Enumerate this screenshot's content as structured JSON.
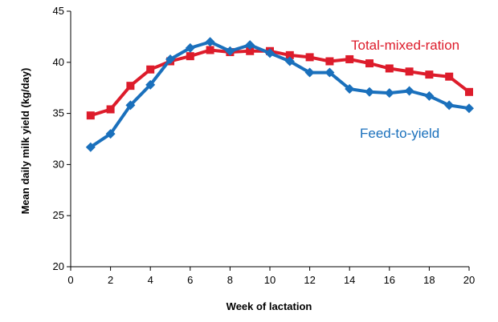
{
  "chart_data": {
    "type": "line",
    "title": "",
    "xlabel": "Week of lactation",
    "ylabel": "Mean daily milk yield (kg/day)",
    "xlim": [
      0,
      20
    ],
    "ylim": [
      20,
      45
    ],
    "x_ticks": [
      0,
      2,
      4,
      6,
      8,
      10,
      12,
      14,
      16,
      18,
      20
    ],
    "y_ticks": [
      20,
      25,
      30,
      35,
      40,
      45
    ],
    "grid": false,
    "legend": "inline labels next to series",
    "x": [
      1,
      2,
      3,
      4,
      5,
      6,
      7,
      8,
      9,
      10,
      11,
      12,
      13,
      14,
      15,
      16,
      17,
      18,
      19,
      20
    ],
    "series": [
      {
        "name": "Total-mixed-ration",
        "color": "#dd1c2b",
        "marker": "square",
        "values": [
          34.8,
          35.4,
          37.7,
          39.3,
          40.1,
          40.6,
          41.2,
          41.0,
          41.1,
          41.1,
          40.7,
          40.5,
          40.1,
          40.3,
          39.9,
          39.4,
          39.1,
          38.8,
          38.6,
          37.1
        ]
      },
      {
        "name": "Feed-to-yield",
        "color": "#1a70bc",
        "marker": "diamond",
        "values": [
          31.7,
          33.0,
          35.8,
          37.8,
          40.3,
          41.4,
          42.0,
          41.1,
          41.7,
          40.9,
          40.1,
          39.0,
          39.0,
          37.4,
          37.1,
          37.0,
          37.2,
          36.7,
          35.8,
          35.5
        ]
      }
    ]
  }
}
